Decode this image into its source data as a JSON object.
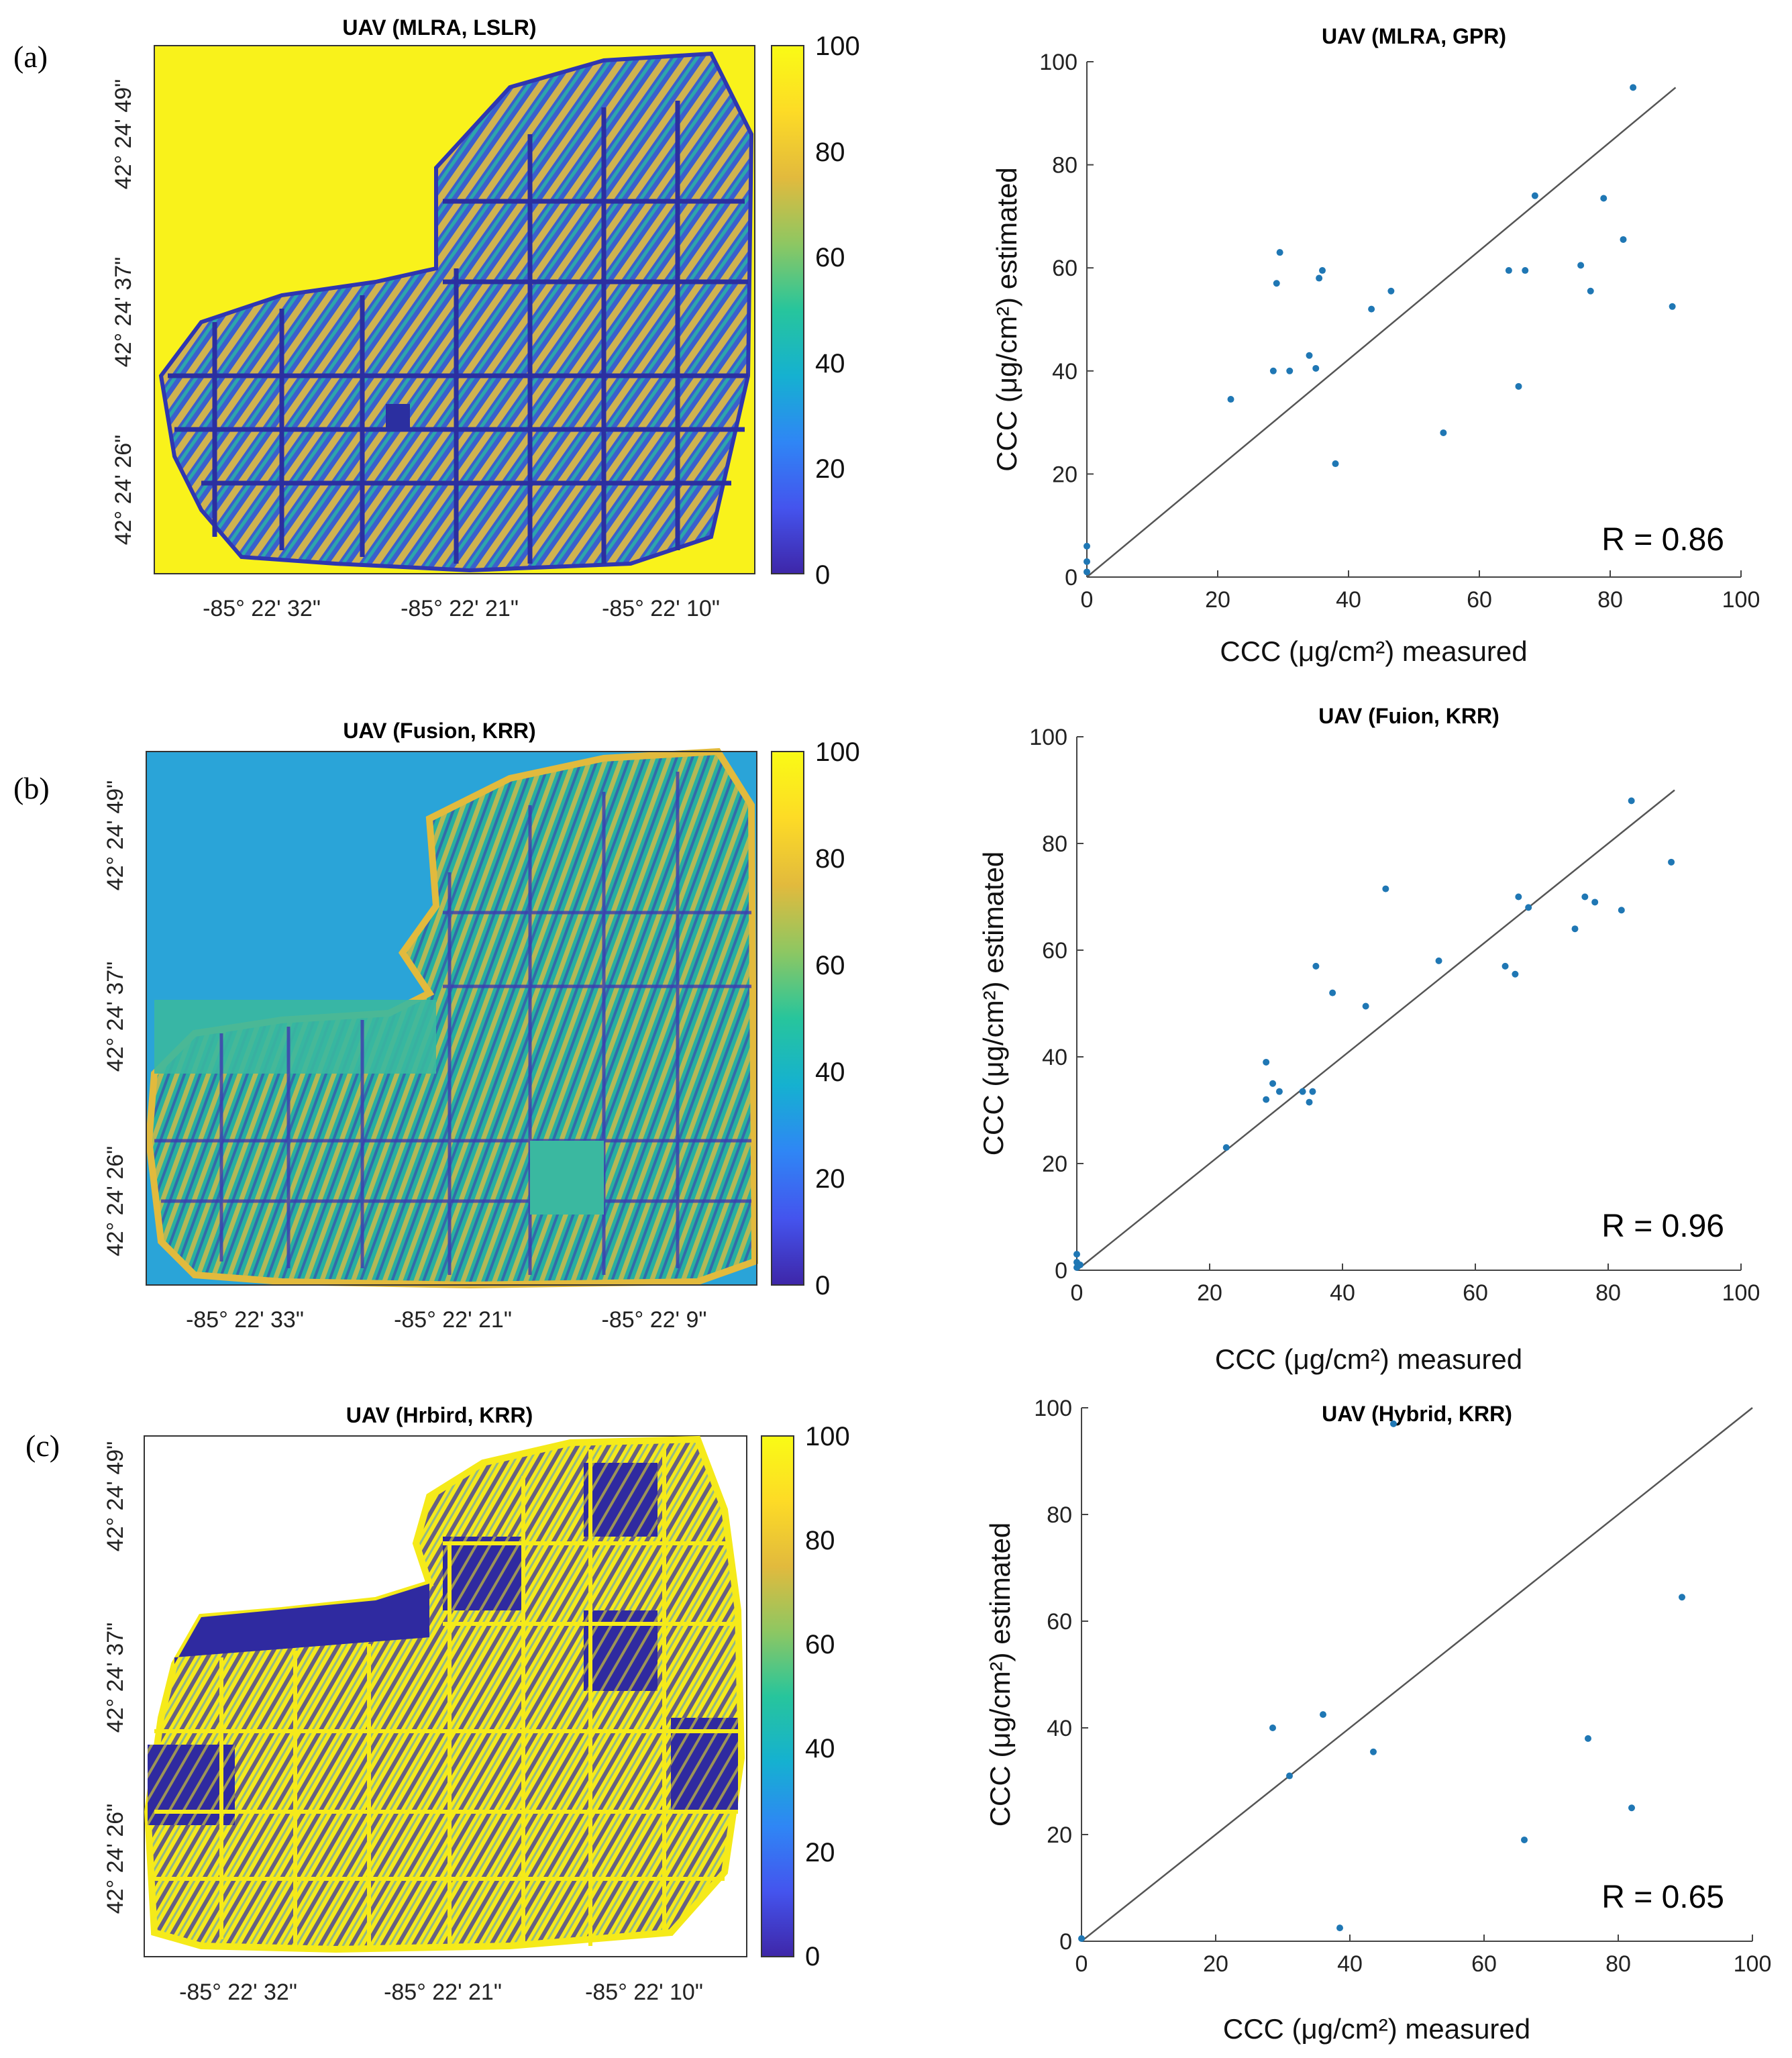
{
  "panel_labels": [
    "(a)",
    "(b)",
    "(c)"
  ],
  "colors": {
    "point": "#1f77b4",
    "line": "#555555",
    "map_yellow": "#f9f21b",
    "map_green": "#3ab8a0",
    "map_blue": "#3a5fcd",
    "map_cyan": "#2aa4d8",
    "map_dark": "#2b2fa0"
  },
  "colormap": [
    "#3e26a8",
    "#4454ee",
    "#2f86f5",
    "#15b1d0",
    "#27c59c",
    "#8ec762",
    "#e2ba3d",
    "#fddb26",
    "#f9fb15"
  ],
  "maps": [
    {
      "title": "UAV (MLRA, LSLR)",
      "lat_ticks": [
        "42° 24' 49\"",
        "42° 24' 37\"",
        "42° 24' 26\""
      ],
      "lon_ticks": [
        "-85° 22' 32\"",
        "-85° 22' 21\"",
        "-85° 22' 10\""
      ],
      "colorbar_ticks": [
        "100",
        "80",
        "60",
        "40",
        "20",
        "0"
      ],
      "background": "yellow",
      "field": "blue"
    },
    {
      "title": "UAV (Fusion, KRR)",
      "lat_ticks": [
        "42° 24' 49\"",
        "42° 24' 37\"",
        "42° 24' 26\""
      ],
      "lon_ticks": [
        "-85° 22' 33\"",
        "-85° 22' 21\"",
        "-85° 22' 9\""
      ],
      "colorbar_ticks": [
        "100",
        "80",
        "60",
        "40",
        "20",
        "0"
      ],
      "background": "cyan",
      "field": "green"
    },
    {
      "title": "UAV (Hrbird, KRR)",
      "lat_ticks": [
        "42° 24' 49\"",
        "42° 24' 37\"",
        "42° 24' 26\""
      ],
      "lon_ticks": [
        "-85° 22' 32\"",
        "-85° 22' 21\"",
        "-85° 22' 10\""
      ],
      "colorbar_ticks": [
        "100",
        "80",
        "60",
        "40",
        "20",
        "0"
      ],
      "background": "white",
      "field": "yellow"
    }
  ],
  "chart_data": [
    {
      "type": "scatter",
      "title": "UAV (MLRA, GPR)",
      "xlabel": "CCC (μg/cm²) measured",
      "ylabel": "CCC (μg/cm²) estimated",
      "xlim": [
        0,
        100
      ],
      "ylim": [
        0,
        100
      ],
      "xticks": [
        0,
        20,
        40,
        60,
        80,
        100
      ],
      "yticks": [
        0,
        20,
        40,
        60,
        80,
        100
      ],
      "annotation": "R = 0.86",
      "line": {
        "x": [
          0,
          90
        ],
        "y": [
          0,
          95
        ]
      },
      "points": {
        "x": [
          0,
          0,
          0,
          22,
          28.5,
          29,
          29.5,
          31,
          34,
          35,
          35.5,
          36,
          38,
          43.5,
          46.5,
          54.5,
          64.5,
          66,
          67,
          68.5,
          75.5,
          77,
          79,
          82,
          83.5,
          89.5
        ],
        "y": [
          1,
          3,
          6,
          34.5,
          40,
          57,
          63,
          40,
          43,
          40.5,
          58,
          59.5,
          22,
          52,
          55.5,
          28,
          59.5,
          37,
          59.5,
          74,
          60.5,
          55.5,
          73.5,
          65.5,
          95,
          52.5
        ]
      }
    },
    {
      "type": "scatter",
      "title": "UAV (Fuion, KRR)",
      "xlabel": "CCC (μg/cm²) measured",
      "ylabel": "CCC (μg/cm²) estimated",
      "xlim": [
        0,
        100
      ],
      "ylim": [
        0,
        100
      ],
      "xticks": [
        0,
        20,
        40,
        60,
        80,
        100
      ],
      "yticks": [
        0,
        20,
        40,
        60,
        80,
        100
      ],
      "annotation": "R = 0.96",
      "line": {
        "x": [
          0,
          90
        ],
        "y": [
          0,
          90
        ]
      },
      "points": {
        "x": [
          0,
          0,
          0,
          0.5,
          22.5,
          28.5,
          28.5,
          29.5,
          30.5,
          34,
          35,
          35.5,
          36,
          38.5,
          43.5,
          46.5,
          54.5,
          64.5,
          66,
          66.5,
          68,
          75,
          76.5,
          78,
          82,
          83.5,
          89.5
        ],
        "y": [
          0.5,
          1.5,
          3,
          1,
          23,
          32,
          39,
          35,
          33.5,
          33.5,
          31.5,
          33.5,
          57,
          52,
          49.5,
          71.5,
          58,
          57,
          55.5,
          70,
          68,
          64,
          70,
          69,
          67.5,
          88,
          76.5
        ]
      }
    },
    {
      "type": "scatter",
      "title": "UAV (Hybrid, KRR)",
      "xlabel": "CCC (μg/cm²) measured",
      "ylabel": "CCC (μg/cm²) estimated",
      "xlim": [
        0,
        100
      ],
      "ylim": [
        0,
        100
      ],
      "xticks": [
        0,
        20,
        40,
        60,
        80,
        100
      ],
      "yticks": [
        0,
        20,
        40,
        60,
        80,
        100
      ],
      "annotation": "R = 0.65",
      "line": {
        "x": [
          0,
          100
        ],
        "y": [
          0,
          100
        ]
      },
      "points": {
        "x": [
          0,
          28.5,
          31,
          36,
          38.5,
          43.5,
          46.5,
          66,
          75.5,
          82,
          89.5
        ],
        "y": [
          0.5,
          40,
          31,
          42.5,
          2.5,
          35.5,
          97,
          19,
          38,
          25,
          64.5
        ]
      }
    }
  ]
}
